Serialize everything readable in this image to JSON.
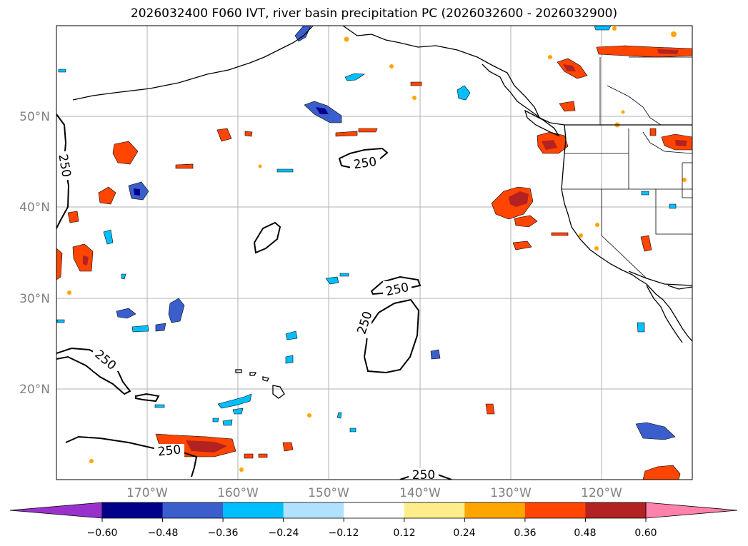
{
  "title": "2026032400 F060 IVT, river basin precipitation PC (2026032600 - 2026032900)",
  "lat_labels": [
    "50°N",
    "40°N",
    "30°N",
    "20°N"
  ],
  "lon_labels": [
    "170°W",
    "160°W",
    "150°W",
    "140°W",
    "130°W",
    "120°W"
  ],
  "contour_label": "250",
  "colorbar": {
    "tick_labels": [
      "−0.60",
      "−0.48",
      "−0.36",
      "−0.24",
      "−0.12",
      "0.12",
      "0.24",
      "0.36",
      "0.48",
      "0.60"
    ],
    "under_color": "#9932cc",
    "bin_colors": [
      "#00008b",
      "#3a5fcd",
      "#00bfff",
      "#b0e2ff",
      "#ffffff",
      "#ffec8b",
      "#ffa500",
      "#ff4500",
      "#b22222"
    ],
    "over_color": "#ff82ab"
  },
  "colors": {
    "neg_strong": "#00008b",
    "neg_mid": "#3a5fcd",
    "neg_light": "#00bfff",
    "neg_pale": "#b0e2ff",
    "pos_pale": "#ffec8b",
    "pos_mid": "#ffa500",
    "pos_strong": "#ff4500",
    "pos_dark": "#b22222",
    "grid": "#b0b0b0",
    "coast": "#000000"
  }
}
